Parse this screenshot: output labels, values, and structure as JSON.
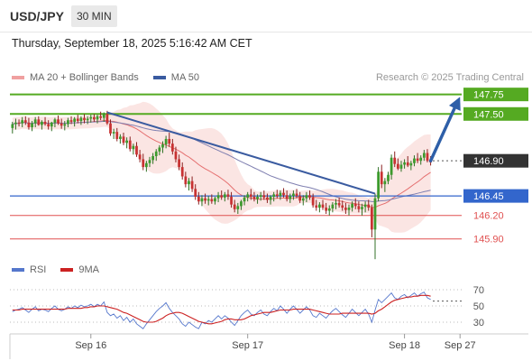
{
  "header": {
    "symbol": "USD/JPY",
    "interval": "30 MIN"
  },
  "datetime": "Thursday, September 18, 2025 5:16:42 AM CET",
  "legend": {
    "bb_label": "MA 20 + Bollinger Bands",
    "ma50_label": "MA 50",
    "credit": "Research © 2025 Trading Central"
  },
  "rsi_legend": {
    "rsi_label": "RSI",
    "ma_label": "9MA"
  },
  "colors": {
    "resistance": "#55aa22",
    "support_blue": "#3366cc",
    "support_red": "#e05050",
    "trend": "#3a5ba0",
    "arrow": "#2e5fa8",
    "candle_up": "#3c9a2c",
    "candle_down": "#c83232",
    "bb_fill": "#f8d0cc",
    "ma20": "#e57070",
    "ma50": "#7f7fb0",
    "rsi": "#5577cc",
    "rsi_ma": "#cc2222",
    "current_label_bg": "#333333"
  },
  "chart_data": {
    "type": "candlestick",
    "y_range": [
      145.7,
      147.85
    ],
    "price_levels": [
      {
        "value": 147.75,
        "label": "147.75",
        "kind": "resistance"
      },
      {
        "value": 147.5,
        "label": "147.50",
        "kind": "resistance"
      },
      {
        "value": 146.9,
        "label": "146.90",
        "kind": "current"
      },
      {
        "value": 146.45,
        "label": "146.45",
        "kind": "support-blue"
      },
      {
        "value": 146.2,
        "label": "146.20",
        "kind": "support-red"
      },
      {
        "value": 145.9,
        "label": "145.90",
        "kind": "support-red"
      }
    ],
    "x_ticks": [
      "Sep 16",
      "Sep 17",
      "Sep 18",
      "Sep 27"
    ],
    "x_tick_index": [
      24,
      72,
      120,
      137
    ],
    "n_bars": 138,
    "trendline": {
      "from": [
        29,
        147.52
      ],
      "to": [
        111,
        146.48
      ]
    },
    "projection": {
      "from": [
        128,
        146.9
      ],
      "to": [
        137,
        147.72
      ]
    },
    "candles": [
      [
        147.32,
        147.4,
        147.25,
        147.37
      ],
      [
        147.37,
        147.44,
        147.3,
        147.39
      ],
      [
        147.39,
        147.43,
        147.34,
        147.38
      ],
      [
        147.38,
        147.46,
        147.33,
        147.42
      ],
      [
        147.42,
        147.47,
        147.36,
        147.39
      ],
      [
        147.39,
        147.45,
        147.3,
        147.33
      ],
      [
        147.33,
        147.41,
        147.28,
        147.38
      ],
      [
        147.38,
        147.46,
        147.33,
        147.43
      ],
      [
        147.43,
        147.47,
        147.35,
        147.36
      ],
      [
        147.36,
        147.42,
        147.3,
        147.4
      ],
      [
        147.4,
        147.46,
        147.35,
        147.37
      ],
      [
        147.37,
        147.42,
        147.3,
        147.34
      ],
      [
        147.34,
        147.4,
        147.28,
        147.39
      ],
      [
        147.39,
        147.45,
        147.33,
        147.43
      ],
      [
        147.43,
        147.48,
        147.36,
        147.38
      ],
      [
        147.38,
        147.44,
        147.31,
        147.35
      ],
      [
        147.35,
        147.41,
        147.29,
        147.37
      ],
      [
        147.37,
        147.45,
        147.33,
        147.42
      ],
      [
        147.42,
        147.47,
        147.37,
        147.4
      ],
      [
        147.4,
        147.46,
        147.34,
        147.44
      ],
      [
        147.44,
        147.49,
        147.38,
        147.41
      ],
      [
        147.41,
        147.47,
        147.36,
        147.45
      ],
      [
        147.45,
        147.5,
        147.38,
        147.42
      ],
      [
        147.42,
        147.47,
        147.37,
        147.44
      ],
      [
        147.44,
        147.49,
        147.39,
        147.46
      ],
      [
        147.46,
        147.5,
        147.4,
        147.43
      ],
      [
        147.43,
        147.49,
        147.38,
        147.47
      ],
      [
        147.47,
        147.53,
        147.42,
        147.45
      ],
      [
        147.45,
        147.52,
        147.4,
        147.5
      ],
      [
        147.5,
        147.54,
        147.36,
        147.38
      ],
      [
        147.38,
        147.43,
        147.22,
        147.25
      ],
      [
        147.25,
        147.31,
        147.18,
        147.27
      ],
      [
        147.27,
        147.32,
        147.15,
        147.18
      ],
      [
        147.18,
        147.24,
        147.12,
        147.21
      ],
      [
        147.21,
        147.26,
        147.1,
        147.13
      ],
      [
        147.13,
        147.2,
        147.06,
        147.16
      ],
      [
        147.16,
        147.21,
        147.02,
        147.05
      ],
      [
        147.05,
        147.12,
        146.98,
        147.09
      ],
      [
        147.09,
        147.14,
        146.95,
        146.98
      ],
      [
        146.98,
        147.04,
        146.88,
        146.92
      ],
      [
        146.92,
        146.99,
        146.78,
        146.82
      ],
      [
        146.82,
        146.9,
        146.76,
        146.87
      ],
      [
        146.87,
        146.95,
        146.82,
        146.91
      ],
      [
        146.91,
        147.0,
        146.86,
        146.96
      ],
      [
        146.96,
        147.05,
        146.9,
        147.02
      ],
      [
        147.02,
        147.1,
        146.97,
        147.07
      ],
      [
        147.07,
        147.15,
        147.0,
        147.11
      ],
      [
        147.11,
        147.22,
        147.06,
        147.18
      ],
      [
        147.18,
        147.26,
        147.08,
        147.12
      ],
      [
        147.12,
        147.18,
        146.98,
        147.02
      ],
      [
        147.02,
        147.08,
        146.88,
        146.92
      ],
      [
        146.92,
        146.98,
        146.78,
        146.82
      ],
      [
        146.82,
        146.88,
        146.66,
        146.7
      ],
      [
        146.7,
        146.76,
        146.56,
        146.6
      ],
      [
        146.6,
        146.68,
        146.52,
        146.64
      ],
      [
        146.64,
        146.7,
        146.5,
        146.54
      ],
      [
        146.54,
        146.6,
        146.4,
        146.44
      ],
      [
        146.44,
        146.5,
        146.34,
        146.38
      ],
      [
        146.38,
        146.46,
        146.32,
        146.42
      ],
      [
        146.42,
        146.48,
        146.35,
        146.39
      ],
      [
        146.39,
        146.45,
        146.33,
        146.41
      ],
      [
        146.41,
        146.47,
        146.35,
        146.38
      ],
      [
        146.38,
        146.44,
        146.34,
        146.42
      ],
      [
        146.42,
        146.5,
        146.37,
        146.46
      ],
      [
        146.46,
        146.52,
        146.4,
        146.43
      ],
      [
        146.43,
        146.5,
        146.38,
        146.47
      ],
      [
        146.47,
        146.53,
        146.4,
        146.44
      ],
      [
        146.44,
        146.5,
        146.3,
        146.34
      ],
      [
        146.34,
        146.4,
        146.24,
        146.28
      ],
      [
        146.28,
        146.36,
        146.22,
        146.32
      ],
      [
        146.32,
        146.4,
        146.27,
        146.38
      ],
      [
        146.38,
        146.46,
        146.33,
        146.43
      ],
      [
        146.43,
        146.5,
        146.38,
        146.47
      ],
      [
        146.47,
        146.54,
        146.4,
        146.44
      ],
      [
        146.44,
        146.5,
        146.38,
        146.41
      ],
      [
        146.41,
        146.47,
        146.35,
        146.44
      ],
      [
        146.44,
        146.5,
        146.39,
        146.46
      ],
      [
        146.46,
        146.52,
        146.4,
        146.43
      ],
      [
        146.43,
        146.48,
        146.36,
        146.4
      ],
      [
        146.4,
        146.46,
        146.34,
        146.44
      ],
      [
        146.44,
        146.5,
        146.38,
        146.47
      ],
      [
        146.47,
        146.53,
        146.42,
        146.45
      ],
      [
        146.45,
        146.52,
        146.4,
        146.49
      ],
      [
        146.49,
        146.55,
        146.43,
        146.46
      ],
      [
        146.46,
        146.52,
        146.38,
        146.41
      ],
      [
        146.41,
        146.48,
        146.36,
        146.45
      ],
      [
        146.45,
        146.52,
        146.4,
        146.48
      ],
      [
        146.48,
        146.54,
        146.42,
        146.45
      ],
      [
        146.45,
        146.5,
        146.36,
        146.39
      ],
      [
        146.39,
        146.46,
        146.33,
        146.42
      ],
      [
        146.42,
        146.5,
        146.37,
        146.46
      ],
      [
        146.46,
        146.52,
        146.4,
        146.43
      ],
      [
        146.43,
        146.48,
        146.3,
        146.33
      ],
      [
        146.33,
        146.4,
        146.26,
        146.3
      ],
      [
        146.3,
        146.37,
        146.24,
        146.34
      ],
      [
        146.34,
        146.4,
        146.27,
        146.3
      ],
      [
        146.3,
        146.36,
        146.22,
        146.26
      ],
      [
        146.26,
        146.33,
        146.2,
        146.29
      ],
      [
        146.29,
        146.37,
        146.24,
        146.34
      ],
      [
        146.34,
        146.41,
        146.28,
        146.36
      ],
      [
        146.36,
        146.43,
        146.3,
        146.33
      ],
      [
        146.33,
        146.39,
        146.26,
        146.3
      ],
      [
        146.3,
        146.36,
        146.22,
        146.27
      ],
      [
        146.27,
        146.34,
        146.2,
        146.3
      ],
      [
        146.3,
        146.38,
        146.25,
        146.35
      ],
      [
        146.35,
        146.42,
        146.28,
        146.32
      ],
      [
        146.32,
        146.38,
        146.24,
        146.28
      ],
      [
        146.28,
        146.35,
        146.2,
        146.31
      ],
      [
        146.31,
        146.38,
        146.24,
        146.34
      ],
      [
        146.34,
        146.4,
        146.26,
        146.3
      ],
      [
        146.3,
        146.34,
        145.92,
        146.02
      ],
      [
        146.02,
        146.48,
        145.64,
        146.42
      ],
      [
        146.42,
        146.82,
        146.38,
        146.76
      ],
      [
        146.76,
        146.85,
        146.55,
        146.6
      ],
      [
        146.6,
        146.68,
        146.5,
        146.64
      ],
      [
        146.64,
        146.76,
        146.6,
        146.72
      ],
      [
        146.72,
        146.98,
        146.66,
        146.94
      ],
      [
        146.94,
        147.02,
        146.82,
        146.86
      ],
      [
        146.86,
        146.93,
        146.78,
        146.8
      ],
      [
        146.8,
        146.9,
        146.76,
        146.85
      ],
      [
        146.85,
        146.92,
        146.8,
        146.88
      ],
      [
        146.88,
        146.96,
        146.82,
        146.84
      ],
      [
        146.84,
        146.9,
        146.78,
        146.87
      ],
      [
        146.87,
        146.97,
        146.83,
        146.93
      ],
      [
        146.93,
        147.0,
        146.87,
        146.9
      ],
      [
        146.9,
        146.97,
        146.85,
        146.94
      ],
      [
        146.94,
        147.04,
        146.9,
        147.0
      ],
      [
        147.0,
        147.05,
        146.88,
        146.9
      ],
      [
        146.9,
        146.96,
        146.84,
        146.88
      ]
    ],
    "rsi_axis": {
      "range": [
        20,
        80
      ],
      "ticks": [
        70,
        50,
        30
      ]
    },
    "rsi_values": [
      43,
      45,
      46,
      48,
      45,
      42,
      46,
      49,
      44,
      46,
      45,
      43,
      47,
      50,
      46,
      44,
      46,
      49,
      47,
      50,
      48,
      51,
      49,
      50,
      52,
      49,
      52,
      50,
      55,
      42,
      38,
      40,
      35,
      38,
      32,
      36,
      30,
      34,
      28,
      25,
      22,
      28,
      33,
      38,
      43,
      47,
      50,
      54,
      47,
      42,
      38,
      34,
      28,
      25,
      30,
      27,
      24,
      22,
      30,
      28,
      32,
      30,
      34,
      38,
      34,
      38,
      35,
      30,
      26,
      32,
      38,
      42,
      45,
      40,
      38,
      42,
      45,
      40,
      38,
      43,
      47,
      44,
      50,
      46,
      41,
      46,
      50,
      46,
      41,
      45,
      49,
      45,
      38,
      36,
      41,
      38,
      35,
      40,
      44,
      47,
      43,
      39,
      36,
      41,
      46,
      42,
      38,
      42,
      46,
      40,
      30,
      45,
      58,
      54,
      58,
      62,
      66,
      60,
      58,
      62,
      64,
      60,
      63,
      66,
      62,
      65,
      67,
      60,
      58
    ],
    "rsi_ma_values": [
      45,
      45,
      45,
      46,
      46,
      46,
      46,
      46,
      46,
      46,
      46,
      46,
      46,
      46,
      46,
      46,
      46,
      47,
      47,
      47,
      47,
      47,
      48,
      48,
      49,
      49,
      50,
      50,
      50,
      49,
      48,
      47,
      46,
      44,
      42,
      41,
      39,
      37,
      35,
      33,
      31,
      30,
      30,
      30,
      31,
      33,
      35,
      38,
      40,
      41,
      42,
      42,
      41,
      39,
      37,
      35,
      33,
      31,
      30,
      29,
      28,
      28,
      29,
      30,
      31,
      33,
      34,
      34,
      33,
      33,
      33,
      34,
      36,
      38,
      39,
      40,
      41,
      42,
      42,
      42,
      43,
      44,
      45,
      45,
      45,
      45,
      46,
      46,
      46,
      46,
      46,
      46,
      45,
      44,
      43,
      42,
      41,
      40,
      40,
      40,
      40,
      41,
      41,
      41,
      41,
      41,
      41,
      41,
      41,
      41,
      40,
      41,
      44,
      46,
      49,
      52,
      55,
      57,
      58,
      59,
      60,
      61,
      61,
      62,
      62,
      63,
      63,
      63,
      62
    ],
    "rsi_dashed_level": 56
  }
}
